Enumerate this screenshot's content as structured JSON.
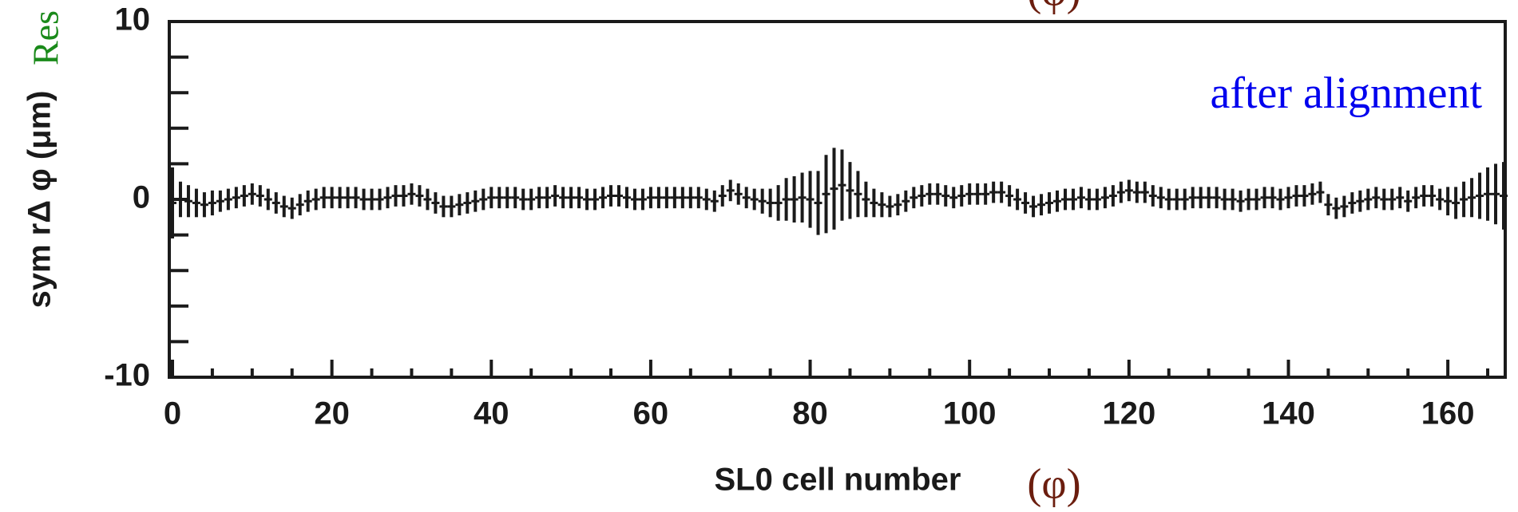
{
  "chart_data": {
    "type": "errorbar",
    "y_label": "sym rΔ φ (μm)",
    "x_label": "SL0 cell number",
    "side_label": "Res",
    "phi_label": "(φ)",
    "annotation": "after alignment",
    "color": "#1a1a1a",
    "annotation_color": "#0000ee",
    "side_label_color": "#1a8a1a",
    "phi_color": "#6b1d0e",
    "xlim": [
      -0.4,
      167.2
    ],
    "ylim": [
      -10,
      10
    ],
    "xticks": [
      0,
      20,
      40,
      60,
      80,
      100,
      120,
      140,
      160
    ],
    "yticks": [
      -10,
      0,
      10
    ],
    "xticks_minor": [
      5,
      10,
      15,
      25,
      30,
      35,
      45,
      50,
      55,
      65,
      70,
      75,
      85,
      90,
      95,
      105,
      110,
      115,
      125,
      130,
      135,
      145,
      150,
      155,
      165
    ],
    "yticks_minor": [
      -8,
      -6,
      -4,
      -2,
      2,
      4,
      6,
      8
    ],
    "x": [
      0,
      1,
      2,
      3,
      4,
      5,
      6,
      7,
      8,
      9,
      10,
      11,
      12,
      13,
      14,
      15,
      16,
      17,
      18,
      19,
      20,
      21,
      22,
      23,
      24,
      25,
      26,
      27,
      28,
      29,
      30,
      31,
      32,
      33,
      34,
      35,
      36,
      37,
      38,
      39,
      40,
      41,
      42,
      43,
      44,
      45,
      46,
      47,
      48,
      49,
      50,
      51,
      52,
      53,
      54,
      55,
      56,
      57,
      58,
      59,
      60,
      61,
      62,
      63,
      64,
      65,
      66,
      67,
      68,
      69,
      70,
      71,
      72,
      73,
      74,
      75,
      76,
      77,
      78,
      79,
      80,
      81,
      82,
      83,
      84,
      85,
      86,
      87,
      88,
      89,
      90,
      91,
      92,
      93,
      94,
      95,
      96,
      97,
      98,
      99,
      100,
      101,
      102,
      103,
      104,
      105,
      106,
      107,
      108,
      109,
      110,
      111,
      112,
      113,
      114,
      115,
      116,
      117,
      118,
      119,
      120,
      121,
      122,
      123,
      124,
      125,
      126,
      127,
      128,
      129,
      130,
      131,
      132,
      133,
      134,
      135,
      136,
      137,
      138,
      139,
      140,
      141,
      142,
      143,
      144,
      145,
      146,
      147,
      148,
      149,
      150,
      151,
      152,
      153,
      154,
      155,
      156,
      157,
      158,
      159,
      160,
      161,
      162,
      163,
      164,
      165,
      166,
      167
    ],
    "values": [
      -0.2,
      0,
      -0.1,
      -0.2,
      -0.3,
      -0.2,
      -0.1,
      0,
      0.1,
      0.2,
      0.3,
      0.2,
      0,
      -0.2,
      -0.4,
      -0.5,
      -0.3,
      -0.1,
      0,
      0.1,
      0.1,
      0.1,
      0.1,
      0.1,
      0,
      0,
      0,
      0.1,
      0.2,
      0.2,
      0.3,
      0.2,
      0,
      -0.2,
      -0.4,
      -0.4,
      -0.3,
      -0.2,
      -0.1,
      0,
      0.1,
      0.1,
      0.1,
      0.1,
      0,
      0,
      0.1,
      0.1,
      0.2,
      0.1,
      0.1,
      0.1,
      0,
      0,
      0.1,
      0.2,
      0.2,
      0.1,
      0,
      0,
      0.1,
      0.1,
      0.1,
      0.1,
      0.1,
      0.1,
      0.1,
      0,
      -0.1,
      0.2,
      0.5,
      0.3,
      0.1,
      0,
      -0.1,
      -0.2,
      -0.2,
      0,
      0,
      0.1,
      0,
      -0.2,
      0.3,
      0.6,
      0.8,
      0.5,
      0.3,
      0,
      -0.2,
      -0.3,
      -0.4,
      -0.3,
      -0.1,
      0.1,
      0.2,
      0.3,
      0.3,
      0.2,
      0.1,
      0.2,
      0.3,
      0.3,
      0.3,
      0.4,
      0.4,
      0.2,
      0,
      -0.2,
      -0.4,
      -0.3,
      -0.2,
      -0.1,
      0,
      0,
      0.1,
      0,
      0,
      0.1,
      0.2,
      0.4,
      0.5,
      0.4,
      0.4,
      0.2,
      0.1,
      0,
      0,
      0,
      0.1,
      0.1,
      0.1,
      0.1,
      0,
      0,
      -0.1,
      0,
      0,
      0.1,
      0.1,
      0,
      0.1,
      0.2,
      0.2,
      0.3,
      0.4,
      -0.3,
      -0.5,
      -0.4,
      -0.2,
      -0.1,
      0,
      0.1,
      0,
      0,
      0.1,
      -0.1,
      0.1,
      0.2,
      0.2,
      0,
      -0.1,
      -0.2,
      0,
      0.1,
      0.2,
      0.3,
      0.3,
      0.2
    ],
    "errors": [
      2.0,
      1.0,
      0.9,
      0.8,
      0.7,
      0.7,
      0.6,
      0.6,
      0.6,
      0.6,
      0.6,
      0.6,
      0.6,
      0.6,
      0.6,
      0.6,
      0.6,
      0.6,
      0.6,
      0.6,
      0.6,
      0.6,
      0.6,
      0.6,
      0.6,
      0.6,
      0.6,
      0.6,
      0.6,
      0.6,
      0.6,
      0.6,
      0.6,
      0.6,
      0.6,
      0.6,
      0.6,
      0.6,
      0.6,
      0.6,
      0.6,
      0.6,
      0.6,
      0.6,
      0.6,
      0.6,
      0.6,
      0.6,
      0.6,
      0.6,
      0.6,
      0.6,
      0.6,
      0.6,
      0.6,
      0.6,
      0.6,
      0.6,
      0.6,
      0.6,
      0.6,
      0.6,
      0.6,
      0.6,
      0.6,
      0.6,
      0.6,
      0.6,
      0.6,
      0.6,
      0.6,
      0.6,
      0.6,
      0.6,
      0.7,
      0.8,
      1.0,
      1.2,
      1.3,
      1.4,
      1.6,
      1.8,
      2.2,
      2.3,
      2.0,
      1.6,
      1.3,
      1.0,
      0.8,
      0.7,
      0.6,
      0.6,
      0.6,
      0.6,
      0.6,
      0.6,
      0.6,
      0.6,
      0.6,
      0.6,
      0.6,
      0.6,
      0.6,
      0.6,
      0.6,
      0.6,
      0.6,
      0.6,
      0.6,
      0.6,
      0.6,
      0.6,
      0.6,
      0.6,
      0.6,
      0.6,
      0.6,
      0.6,
      0.6,
      0.6,
      0.6,
      0.6,
      0.6,
      0.6,
      0.6,
      0.6,
      0.6,
      0.6,
      0.6,
      0.6,
      0.6,
      0.6,
      0.6,
      0.6,
      0.6,
      0.6,
      0.6,
      0.6,
      0.6,
      0.6,
      0.6,
      0.6,
      0.6,
      0.6,
      0.6,
      0.6,
      0.6,
      0.6,
      0.6,
      0.6,
      0.6,
      0.6,
      0.6,
      0.6,
      0.6,
      0.6,
      0.6,
      0.6,
      0.6,
      0.6,
      0.8,
      0.9,
      1.0,
      1.1,
      1.3,
      1.5,
      1.7,
      1.9
    ]
  }
}
